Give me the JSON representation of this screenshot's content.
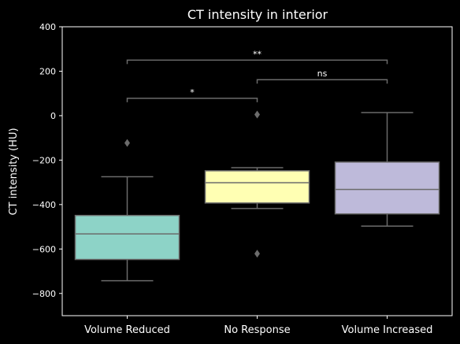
{
  "chart_data": {
    "type": "box",
    "title": "CT intensity in interior",
    "xlabel": "",
    "ylabel": "CT intensity (HU)",
    "ylim": [
      -900,
      400
    ],
    "yticks": [
      400,
      200,
      0,
      -200,
      -400,
      -600,
      -800
    ],
    "ytick_labels": [
      "400",
      "200",
      "0",
      "−200",
      "−400",
      "−600",
      "−800"
    ],
    "categories": [
      "Volume Reduced",
      "No Response",
      "Volume Increased"
    ],
    "boxes": [
      {
        "category": "Volume Reduced",
        "whisker_low": -743,
        "q1": -647,
        "median": -532,
        "q3": -449,
        "whisker_high": -275,
        "outliers": [
          -123
        ],
        "color": "#8dd3c7"
      },
      {
        "category": "No Response",
        "whisker_low": -418,
        "q1": -393,
        "median": -302,
        "q3": -248,
        "whisker_high": -234,
        "outliers": [
          5,
          -621
        ],
        "color": "#ffffb3"
      },
      {
        "category": "Volume Increased",
        "whisker_low": -497,
        "q1": -442,
        "median": -332,
        "q3": -209,
        "whisker_high": 14,
        "outliers": [],
        "color": "#bebada"
      }
    ],
    "annotations": [
      {
        "from": "Volume Reduced",
        "to": "No Response",
        "y": 78,
        "label": "*"
      },
      {
        "from": "No Response",
        "to": "Volume Increased",
        "y": 162,
        "label": "ns"
      },
      {
        "from": "Volume Reduced",
        "to": "Volume Increased",
        "y": 250,
        "label": "**"
      }
    ],
    "grid": false,
    "colors": {
      "background": "#000000",
      "axes": "#ffffff",
      "box_edge": "#6b6b6b",
      "bracket": "#6b6b6b"
    }
  }
}
